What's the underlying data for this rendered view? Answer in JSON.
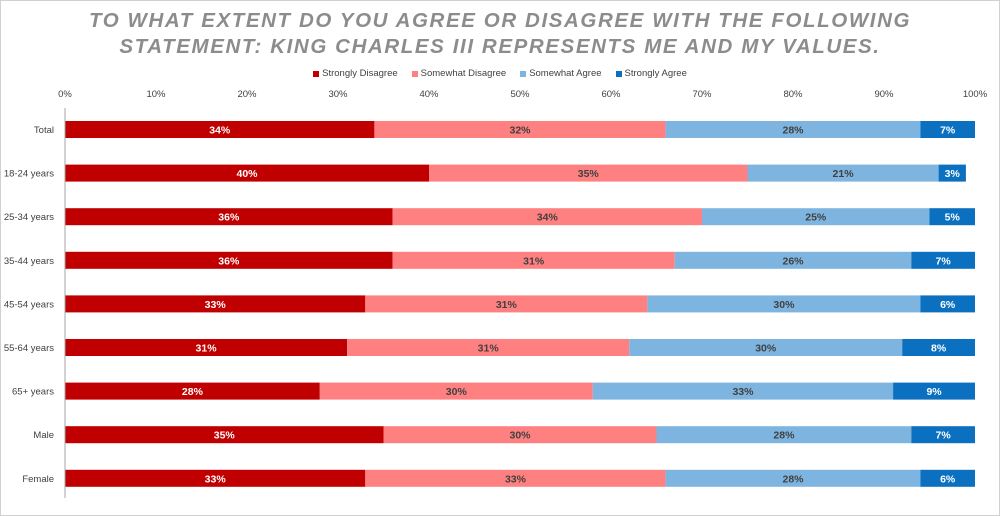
{
  "chart_data": {
    "type": "bar",
    "orientation": "horizontal",
    "stacked": true,
    "title_lines": [
      "TO WHAT EXTENT DO YOU AGREE OR DISAGREE WITH THE FOLLOWING",
      "STATEMENT: KING CHARLES III REPRESENTS ME AND MY VALUES."
    ],
    "categories": [
      "Total",
      "18-24 years",
      "25-34 years",
      "35-44 years",
      "45-54 years",
      "55-64 years",
      "65+ years",
      "Male",
      "Female"
    ],
    "series": [
      {
        "name": "Strongly Disagree",
        "color": "#c00000",
        "label_color": "#ffffff",
        "values": [
          34,
          40,
          36,
          36,
          33,
          31,
          28,
          35,
          33
        ]
      },
      {
        "name": "Somewhat Disagree",
        "color": "#ff8080",
        "label_color": "#404040",
        "values": [
          32,
          35,
          34,
          31,
          31,
          31,
          30,
          30,
          33
        ]
      },
      {
        "name": "Somewhat Agree",
        "color": "#7eb5e0",
        "label_color": "#404040",
        "values": [
          28,
          21,
          25,
          26,
          30,
          30,
          33,
          28,
          28
        ]
      },
      {
        "name": "Strongly Agree",
        "color": "#0c70c0",
        "label_color": "#ffffff",
        "values": [
          7,
          3,
          5,
          7,
          6,
          8,
          9,
          7,
          6
        ]
      }
    ],
    "xlim": [
      0,
      100
    ],
    "x_ticks": [
      "0%",
      "10%",
      "20%",
      "30%",
      "40%",
      "50%",
      "60%",
      "70%",
      "80%",
      "90%",
      "100%"
    ],
    "value_suffix": "%",
    "legend_position": "top",
    "grid": false
  }
}
